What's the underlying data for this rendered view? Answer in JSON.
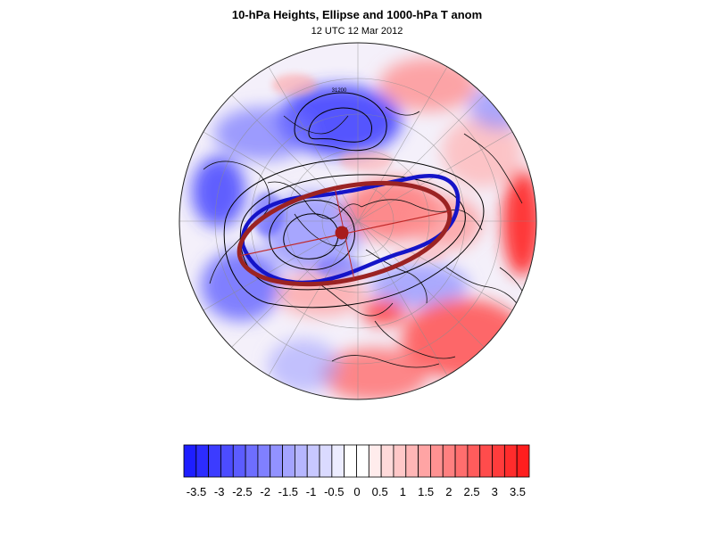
{
  "title": "10-hPa Heights, Ellipse and 1000-hPa T anom",
  "subtitle": "12 UTC 12 Mar 2012",
  "map": {
    "projection": "polar-orthographic",
    "contour_label": "31200",
    "colors": {
      "ellipse": "#9b2323",
      "vortex_edge": "#1414c8",
      "center_marker": "#a81c1c",
      "contours": "#000000"
    }
  },
  "colorbar": {
    "labels": [
      "-3.5",
      "-3",
      "-2.5",
      "-2",
      "-1.5",
      "-1",
      "-0.5",
      "0",
      "0.5",
      "1",
      "1.5",
      "2",
      "2.5",
      "3",
      "3.5"
    ],
    "colors": [
      "#1e1eff",
      "#2c2cff",
      "#3c3cff",
      "#4c4cff",
      "#5c5cff",
      "#6e6eff",
      "#8080ff",
      "#9292ff",
      "#a4a4ff",
      "#b6b6ff",
      "#c8c8ff",
      "#dadaff",
      "#ececff",
      "#ffffff",
      "#ffffff",
      "#ffecec",
      "#ffdada",
      "#ffc8c8",
      "#ffb6b6",
      "#ffa4a4",
      "#ff9292",
      "#ff8080",
      "#ff6e6e",
      "#ff5c5c",
      "#ff4c4c",
      "#ff3c3c",
      "#ff2c2c",
      "#ff1e1e"
    ]
  }
}
